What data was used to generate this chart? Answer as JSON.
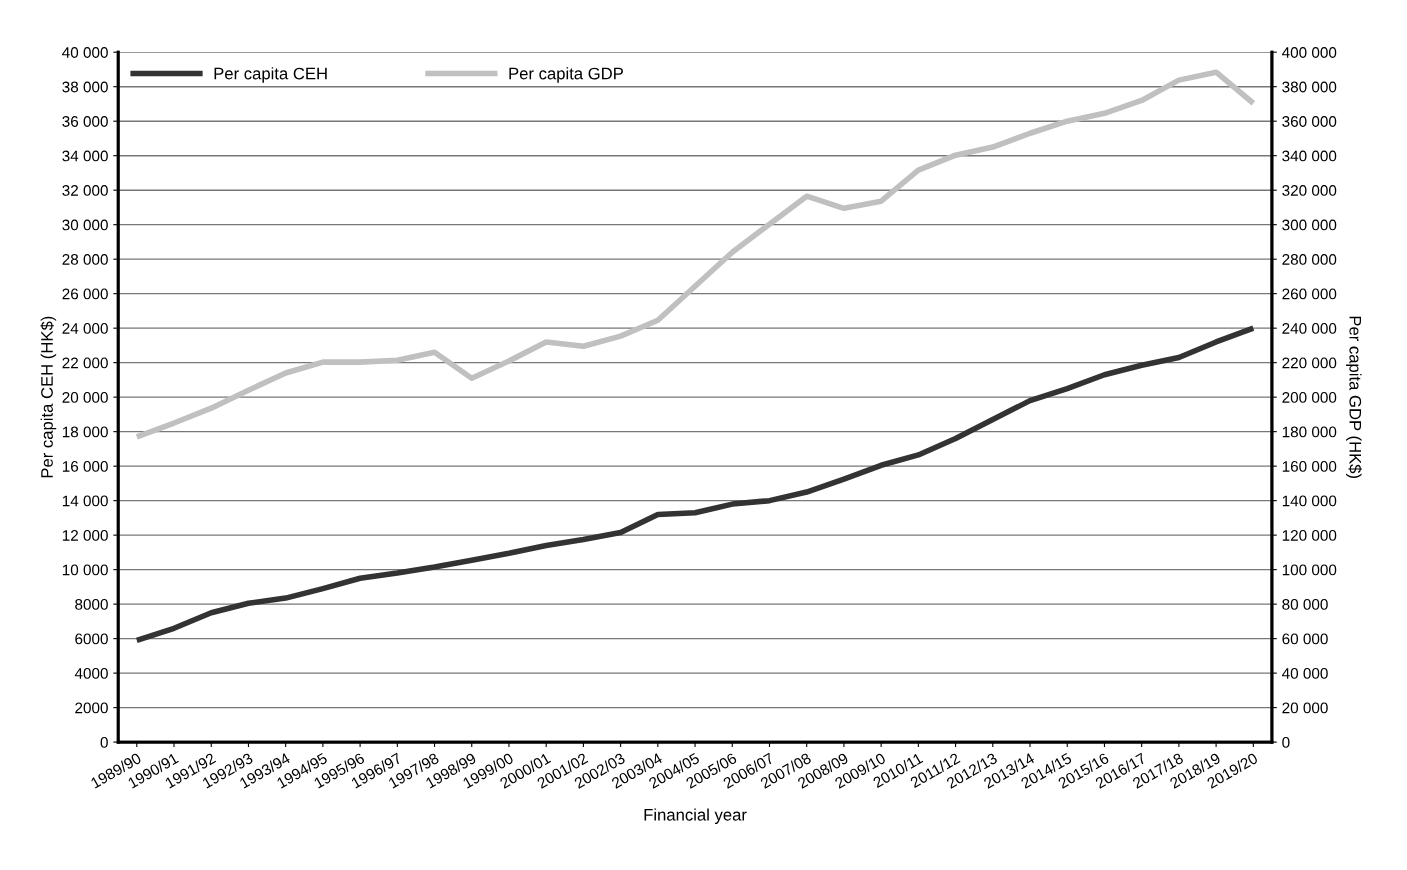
{
  "chart_data": {
    "type": "line",
    "xlabel": "Financial year",
    "ylabel": "Per capita CEH (HK$)",
    "y2label": "Per capita GDP (HK$)",
    "categories": [
      "1989/90",
      "1990/91",
      "1991/92",
      "1992/93",
      "1993/94",
      "1994/95",
      "1995/96",
      "1996/97",
      "1997/98",
      "1998/99",
      "1999/00",
      "2000/01",
      "2001/02",
      "2002/03",
      "2003/04",
      "2004/05",
      "2005/06",
      "2006/07",
      "2007/08",
      "2008/09",
      "2009/10",
      "2010/11",
      "2011/12",
      "2012/13",
      "2013/14",
      "2014/15",
      "2015/16",
      "2016/17",
      "2017/18",
      "2018/19",
      "2019/20"
    ],
    "series": [
      {
        "name": "Per capita CEH",
        "color": "#333333",
        "values": [
          5900,
          6600,
          7500,
          8050,
          8350,
          8900,
          9500,
          9800,
          10150,
          10550,
          10950,
          11400,
          11750,
          12150,
          13200,
          13300,
          13800,
          14000,
          14500,
          15250,
          16050,
          16650,
          17600,
          18700,
          19800,
          20500,
          21300,
          21850,
          22300,
          23200,
          24000
        ]
      },
      {
        "name": "Per capita GDP",
        "color": "#c0c0c0",
        "axis": "y2",
        "values": [
          177000,
          185000,
          193600,
          204000,
          214000,
          220300,
          220300,
          221400,
          226000,
          211000,
          221000,
          232000,
          229500,
          235400,
          244600,
          264300,
          284000,
          300300,
          316500,
          309500,
          313600,
          331600,
          340300,
          345000,
          353000,
          360000,
          364600,
          372000,
          383800,
          388400,
          370400
        ]
      }
    ],
    "ylim": [
      0,
      40000
    ],
    "yticks": [
      0,
      2000,
      4000,
      6000,
      8000,
      {
        "value": 10000,
        "label": "10 000"
      },
      {
        "value": 12000,
        "label": "12 000"
      },
      {
        "value": 14000,
        "label": "14 000"
      },
      {
        "value": 16000,
        "label": "16 000"
      },
      {
        "value": 18000,
        "label": "18 000"
      },
      {
        "value": 20000,
        "label": "20 000"
      },
      {
        "value": 22000,
        "label": "22 000"
      },
      {
        "value": 24000,
        "label": "24 000"
      },
      {
        "value": 26000,
        "label": "26 000"
      },
      {
        "value": 28000,
        "label": "28 000"
      },
      {
        "value": 30000,
        "label": "30 000"
      },
      {
        "value": 32000,
        "label": "32 000"
      },
      {
        "value": 34000,
        "label": "34 000"
      },
      {
        "value": 36000,
        "label": "36 000"
      },
      {
        "value": 38000,
        "label": "38 000"
      },
      {
        "value": 40000,
        "label": "40 000"
      }
    ],
    "y2lim": [
      0,
      400000
    ],
    "y2ticks": [
      0,
      {
        "value": 20000,
        "label": "20 000"
      },
      {
        "value": 40000,
        "label": "40 000"
      },
      {
        "value": 60000,
        "label": "60 000"
      },
      {
        "value": 80000,
        "label": "80 000"
      },
      {
        "value": 100000,
        "label": "100 000"
      },
      {
        "value": 120000,
        "label": "120 000"
      },
      {
        "value": 140000,
        "label": "140 000"
      },
      {
        "value": 160000,
        "label": "160 000"
      },
      {
        "value": 180000,
        "label": "180 000"
      },
      {
        "value": 200000,
        "label": "200 000"
      },
      {
        "value": 220000,
        "label": "220 000"
      },
      {
        "value": 240000,
        "label": "240 000"
      },
      {
        "value": 260000,
        "label": "260 000"
      },
      {
        "value": 280000,
        "label": "280 000"
      },
      {
        "value": 300000,
        "label": "300 000"
      },
      {
        "value": 320000,
        "label": "320 000"
      },
      {
        "value": 340000,
        "label": "340 000"
      },
      {
        "value": 360000,
        "label": "360 000"
      },
      {
        "value": 380000,
        "label": "380 000"
      },
      {
        "value": 400000,
        "label": "400 000"
      }
    ],
    "grid": "y",
    "legend": "top left",
    "marker": "none",
    "line_style": "solid"
  }
}
